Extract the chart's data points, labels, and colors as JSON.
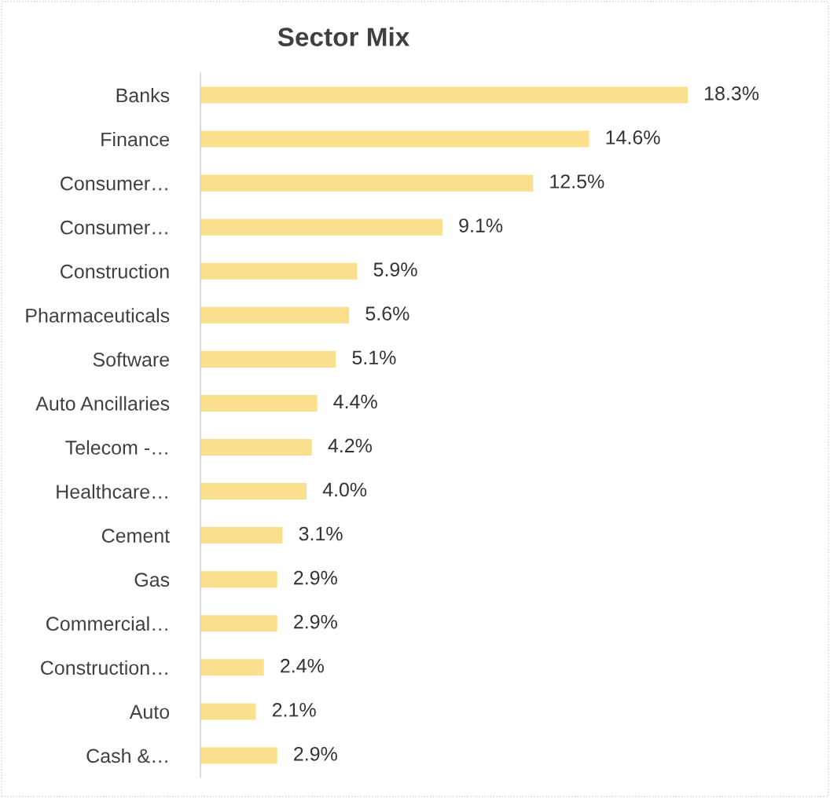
{
  "chart_data": {
    "type": "bar",
    "orientation": "horizontal",
    "title": "Sector Mix",
    "categories": [
      "Banks",
      "Finance",
      "Consumer…",
      "Consumer…",
      "Construction",
      "Pharmaceuticals",
      "Software",
      "Auto Ancillaries",
      "Telecom -…",
      "Healthcare…",
      "Cement",
      "Gas",
      "Commercial…",
      "Construction…",
      "Auto",
      "Cash &…"
    ],
    "values": [
      18.3,
      14.6,
      12.5,
      9.1,
      5.9,
      5.6,
      5.1,
      4.4,
      4.2,
      4.0,
      3.1,
      2.9,
      2.9,
      2.4,
      2.1,
      2.9
    ],
    "value_labels": [
      "18.3%",
      "14.6%",
      "12.5%",
      "9.1%",
      "5.9%",
      "5.6%",
      "5.1%",
      "4.4%",
      "4.2%",
      "4.0%",
      "3.1%",
      "2.9%",
      "2.9%",
      "2.4%",
      "2.1%",
      "2.9%"
    ],
    "color": "#fadf8c"
  }
}
